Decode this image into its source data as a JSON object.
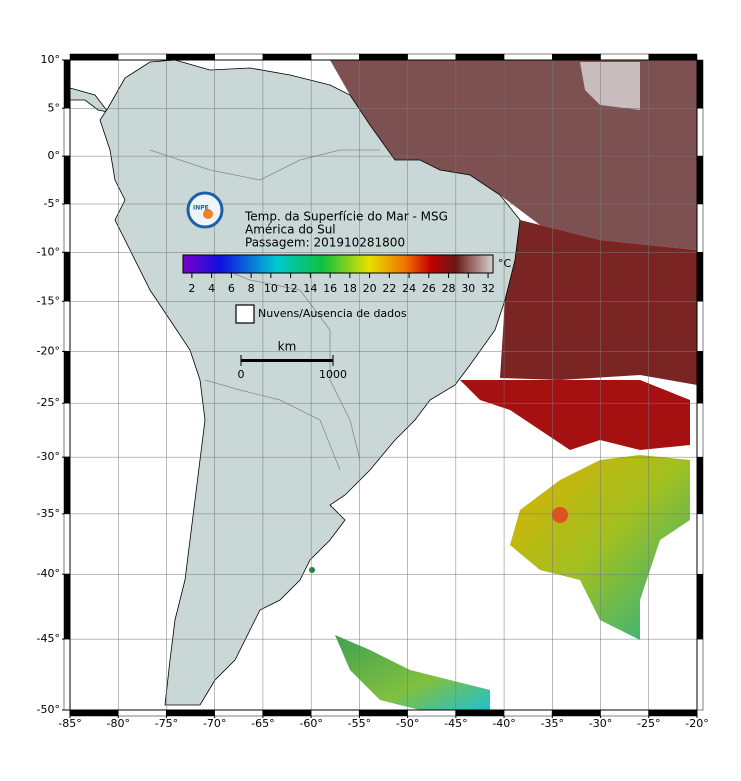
{
  "map": {
    "title_lines": [
      "Temp. da Superfície do Mar - MSG",
      "América do Sul",
      "Passagem: 201910281800"
    ],
    "projection": "mercator",
    "xlim": [
      -85,
      -20
    ],
    "ylim": [
      -50,
      10
    ],
    "xticks": [
      {
        "value": -85,
        "label": "-85°"
      },
      {
        "value": -80,
        "label": "-80°"
      },
      {
        "value": -75,
        "label": "-75°"
      },
      {
        "value": -70,
        "label": "-70°"
      },
      {
        "value": -65,
        "label": "-65°"
      },
      {
        "value": -60,
        "label": "-60°"
      },
      {
        "value": -55,
        "label": "-55°"
      },
      {
        "value": -50,
        "label": "-50°"
      },
      {
        "value": -45,
        "label": "-45°"
      },
      {
        "value": -40,
        "label": "-40°"
      },
      {
        "value": -35,
        "label": "-35°"
      },
      {
        "value": -30,
        "label": "-30°"
      },
      {
        "value": -25,
        "label": "-25°"
      },
      {
        "value": -20,
        "label": "-20°"
      }
    ],
    "yticks": [
      {
        "value": 10,
        "label": "10°"
      },
      {
        "value": 5,
        "label": "5°"
      },
      {
        "value": 0,
        "label": "0°"
      },
      {
        "value": -5,
        "label": "-5°"
      },
      {
        "value": -10,
        "label": "-10°"
      },
      {
        "value": -15,
        "label": "-15°"
      },
      {
        "value": -20,
        "label": "-20°"
      },
      {
        "value": -25,
        "label": "-25°"
      },
      {
        "value": -30,
        "label": "-30°"
      },
      {
        "value": -35,
        "label": "-35°"
      },
      {
        "value": -40,
        "label": "-40°"
      },
      {
        "value": -45,
        "label": "-45°"
      },
      {
        "value": -50,
        "label": "-50°"
      }
    ],
    "grid": true
  },
  "colorbar": {
    "unit": "°C",
    "lim": [
      1.1,
      32.5
    ],
    "ticks": [
      2,
      4,
      6,
      8,
      10,
      12,
      14,
      16,
      18,
      20,
      22,
      24,
      26,
      28,
      30,
      32
    ]
  },
  "legend": {
    "label": "Nuvens/Ausencia de dados"
  },
  "scale_bar": {
    "unit": "km",
    "ticks": [
      0,
      1000
    ]
  },
  "logo": {
    "text": "INPE"
  }
}
